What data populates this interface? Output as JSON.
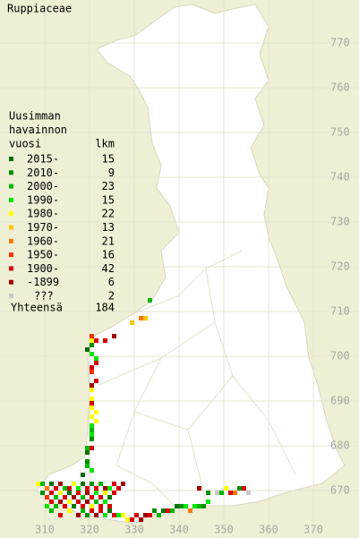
{
  "title": "Ruppiaceae",
  "legend": {
    "header": [
      "Uusimman",
      "havainnon",
      "vuosi"
    ],
    "count_header": "lkm",
    "rows": [
      {
        "label": "2015-",
        "count": 15,
        "color": "#007000"
      },
      {
        "label": "2010-",
        "count": 9,
        "color": "#009000"
      },
      {
        "label": "2000-",
        "count": 23,
        "color": "#00b800"
      },
      {
        "label": "1990-",
        "count": 15,
        "color": "#00e800"
      },
      {
        "label": "1980-",
        "count": 22,
        "color": "#ffff00"
      },
      {
        "label": "1970-",
        "count": 13,
        "color": "#ffc800"
      },
      {
        "label": "1960-",
        "count": 21,
        "color": "#ff7800"
      },
      {
        "label": "1950-",
        "count": 16,
        "color": "#ff3000"
      },
      {
        "label": "1900-",
        "count": 42,
        "color": "#d80000"
      },
      {
        "label": "-1899",
        "count": 6,
        "color": "#a00000"
      },
      {
        "label": "???",
        "count": 2,
        "color": "#c8c8c8"
      }
    ],
    "total": {
      "label": "Yhteensä",
      "value": 184
    }
  },
  "grid": {
    "xticks": [
      310,
      320,
      330,
      340,
      350,
      360,
      370
    ],
    "yticks": [
      670,
      680,
      690,
      700,
      710,
      720,
      730,
      740,
      750,
      760,
      770
    ]
  },
  "squares": [
    [
      320,
      703,
      4
    ],
    [
      320,
      702,
      1
    ],
    [
      319,
      701,
      0
    ],
    [
      320,
      700,
      3
    ],
    [
      321,
      699,
      3
    ],
    [
      321,
      698,
      8
    ],
    [
      320,
      697,
      8
    ],
    [
      320,
      696,
      7
    ],
    [
      321,
      694,
      8
    ],
    [
      320,
      693,
      9
    ],
    [
      320,
      692,
      4
    ],
    [
      320,
      690,
      4
    ],
    [
      320,
      689,
      8
    ],
    [
      320,
      688,
      4
    ],
    [
      321,
      687,
      4
    ],
    [
      320,
      686,
      4
    ],
    [
      321,
      685,
      4
    ],
    [
      320,
      684,
      3
    ],
    [
      320,
      683,
      2
    ],
    [
      320,
      682,
      3
    ],
    [
      320,
      681,
      1
    ],
    [
      319,
      679,
      2
    ],
    [
      320,
      679,
      8
    ],
    [
      319,
      678,
      0
    ],
    [
      319,
      676,
      1
    ],
    [
      319,
      675,
      2
    ],
    [
      320,
      674,
      3
    ],
    [
      318,
      673,
      0
    ],
    [
      320,
      704,
      7
    ],
    [
      321,
      703,
      8
    ],
    [
      323,
      703,
      8
    ],
    [
      325,
      704,
      9
    ],
    [
      329,
      707,
      5
    ],
    [
      331,
      708,
      6
    ],
    [
      332,
      708,
      5
    ],
    [
      333,
      712,
      2
    ],
    [
      308,
      671,
      4
    ],
    [
      309,
      671,
      2
    ],
    [
      310,
      670,
      6
    ],
    [
      311,
      671,
      0
    ],
    [
      312,
      670,
      8
    ],
    [
      313,
      671,
      9
    ],
    [
      314,
      670,
      2
    ],
    [
      315,
      670,
      8
    ],
    [
      316,
      671,
      4
    ],
    [
      317,
      670,
      3
    ],
    [
      318,
      671,
      0
    ],
    [
      319,
      670,
      8
    ],
    [
      320,
      671,
      1
    ],
    [
      321,
      670,
      8
    ],
    [
      322,
      671,
      2
    ],
    [
      323,
      670,
      9
    ],
    [
      324,
      670,
      3
    ],
    [
      325,
      671,
      8
    ],
    [
      326,
      670,
      8
    ],
    [
      327,
      671,
      9
    ],
    [
      309,
      669,
      1
    ],
    [
      310,
      668,
      7
    ],
    [
      311,
      669,
      8
    ],
    [
      312,
      668,
      2
    ],
    [
      313,
      669,
      4
    ],
    [
      314,
      668,
      8
    ],
    [
      315,
      669,
      0
    ],
    [
      316,
      668,
      9
    ],
    [
      317,
      669,
      8
    ],
    [
      318,
      668,
      2
    ],
    [
      319,
      669,
      9
    ],
    [
      320,
      668,
      8
    ],
    [
      321,
      669,
      3
    ],
    [
      322,
      668,
      8
    ],
    [
      323,
      669,
      4
    ],
    [
      324,
      668,
      0
    ],
    [
      325,
      669,
      8
    ],
    [
      310,
      666,
      3
    ],
    [
      311,
      667,
      8
    ],
    [
      312,
      666,
      2
    ],
    [
      313,
      667,
      9
    ],
    [
      314,
      666,
      8
    ],
    [
      315,
      667,
      4
    ],
    [
      316,
      666,
      0
    ],
    [
      317,
      667,
      8
    ],
    [
      318,
      666,
      8
    ],
    [
      319,
      667,
      9
    ],
    [
      320,
      666,
      4
    ],
    [
      321,
      667,
      2
    ],
    [
      322,
      666,
      8
    ],
    [
      323,
      667,
      3
    ],
    [
      324,
      666,
      8
    ],
    [
      311,
      665,
      2
    ],
    [
      313,
      664,
      8
    ],
    [
      315,
      665,
      4
    ],
    [
      317,
      664,
      9
    ],
    [
      318,
      665,
      2
    ],
    [
      319,
      664,
      1
    ],
    [
      320,
      665,
      8
    ],
    [
      321,
      664,
      9
    ],
    [
      322,
      665,
      8
    ],
    [
      323,
      664,
      3
    ],
    [
      324,
      665,
      0
    ],
    [
      325,
      664,
      8
    ],
    [
      326,
      664,
      3
    ],
    [
      327,
      664,
      4
    ],
    [
      328,
      663,
      4
    ],
    [
      329,
      663,
      8
    ],
    [
      330,
      664,
      8
    ],
    [
      331,
      663,
      9
    ],
    [
      332,
      664,
      9
    ],
    [
      333,
      664,
      8
    ],
    [
      334,
      665,
      1
    ],
    [
      335,
      664,
      2
    ],
    [
      336,
      665,
      0
    ],
    [
      337,
      665,
      8
    ],
    [
      338,
      665,
      2
    ],
    [
      339,
      666,
      0
    ],
    [
      340,
      666,
      1
    ],
    [
      341,
      666,
      3
    ],
    [
      342,
      665,
      6
    ],
    [
      343,
      666,
      3
    ],
    [
      344,
      666,
      2
    ],
    [
      345,
      666,
      1
    ],
    [
      346,
      667,
      3
    ],
    [
      348,
      669,
      10
    ],
    [
      349,
      669,
      2
    ],
    [
      350,
      670,
      4
    ],
    [
      351,
      669,
      8
    ],
    [
      352,
      669,
      6
    ],
    [
      353,
      670,
      1
    ],
    [
      354,
      670,
      8
    ],
    [
      355,
      669,
      10
    ],
    [
      344,
      670,
      9
    ],
    [
      346,
      669,
      1
    ]
  ]
}
